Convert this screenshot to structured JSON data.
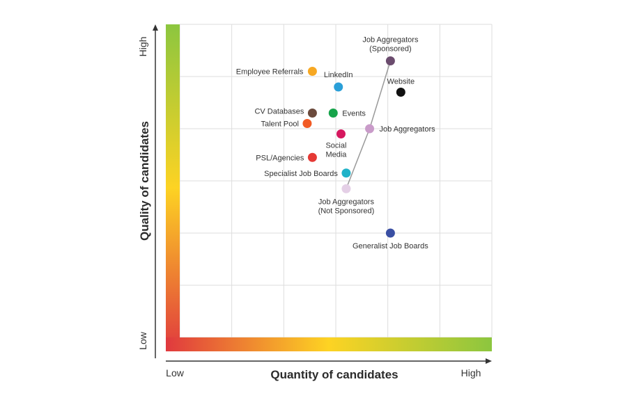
{
  "chart_data": {
    "type": "scatter",
    "xlabel": "Quantity of candidates",
    "ylabel": "Quality of candidates",
    "x_ticks": {
      "low": "Low",
      "high": "High"
    },
    "y_ticks": {
      "low": "Low",
      "high": "High"
    },
    "xlim": [
      0,
      12
    ],
    "ylim": [
      0,
      12
    ],
    "grid": true,
    "gradient_colors": {
      "low": "#e0393e",
      "mid": "#fdd323",
      "high": "#8cc63f"
    },
    "points": [
      {
        "label": [
          "Job Aggregators",
          "(Sponsored)"
        ],
        "x": 8.1,
        "y": 10.6,
        "color": "#6b4c6e"
      },
      {
        "label": [
          "Employee Referrals"
        ],
        "x": 5.1,
        "y": 10.2,
        "color": "#f7a823"
      },
      {
        "label": [
          "LinkedIn"
        ],
        "x": 6.1,
        "y": 9.6,
        "color": "#2a9fd8"
      },
      {
        "label": [
          "Website"
        ],
        "x": 8.5,
        "y": 9.4,
        "color": "#111111"
      },
      {
        "label": [
          "CV Databases"
        ],
        "x": 5.1,
        "y": 8.6,
        "color": "#6b4a3c"
      },
      {
        "label": [
          "Events"
        ],
        "x": 5.9,
        "y": 8.6,
        "color": "#16a34a"
      },
      {
        "label": [
          "Talent Pool"
        ],
        "x": 4.9,
        "y": 8.2,
        "color": "#f15a24"
      },
      {
        "label": [
          "Social",
          "Media"
        ],
        "x": 6.2,
        "y": 7.8,
        "color": "#d6185f"
      },
      {
        "label": [
          "Job Aggregators"
        ],
        "x": 7.3,
        "y": 8.0,
        "color": "#c99bc9"
      },
      {
        "label": [
          "PSL/Agencies"
        ],
        "x": 5.1,
        "y": 6.9,
        "color": "#e53935"
      },
      {
        "label": [
          "Specialist Job Boards"
        ],
        "x": 6.4,
        "y": 6.3,
        "color": "#20b2c8"
      },
      {
        "label": [
          "Job Aggregators",
          "(Not Sponsored)"
        ],
        "x": 6.4,
        "y": 5.7,
        "color": "#e4cfe6"
      },
      {
        "label": [
          "Generalist Job Boards"
        ],
        "x": 8.1,
        "y": 4.0,
        "color": "#3a4fa3"
      }
    ],
    "connector": [
      "Job Aggregators (Sponsored)",
      "Job Aggregators",
      "Job Aggregators (Not Sponsored)"
    ],
    "connector_color": "#999999"
  }
}
